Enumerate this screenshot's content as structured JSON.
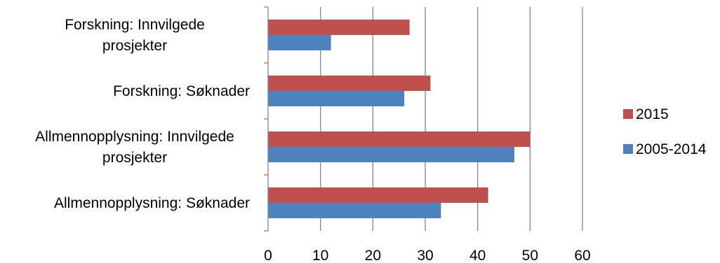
{
  "chart_data": {
    "type": "bar",
    "orientation": "horizontal",
    "categories": [
      "Allmennopplysning: Søknader",
      "Allmennopplysning: Innvilgede prosjekter",
      "Forskning: Søknader",
      "Forskning: Innvilgede prosjekter"
    ],
    "series": [
      {
        "name": "2005-2014",
        "color": "#4f81bd",
        "values": [
          33,
          47,
          26,
          12
        ]
      },
      {
        "name": "2015",
        "color": "#c0504d",
        "values": [
          42,
          50,
          31,
          27
        ]
      }
    ],
    "xlim": [
      0,
      60
    ],
    "xticks": [
      0,
      10,
      20,
      30,
      40,
      50,
      60
    ],
    "grid": true,
    "legend_position": "right",
    "legend_order": [
      "2015",
      "2005-2014"
    ]
  }
}
